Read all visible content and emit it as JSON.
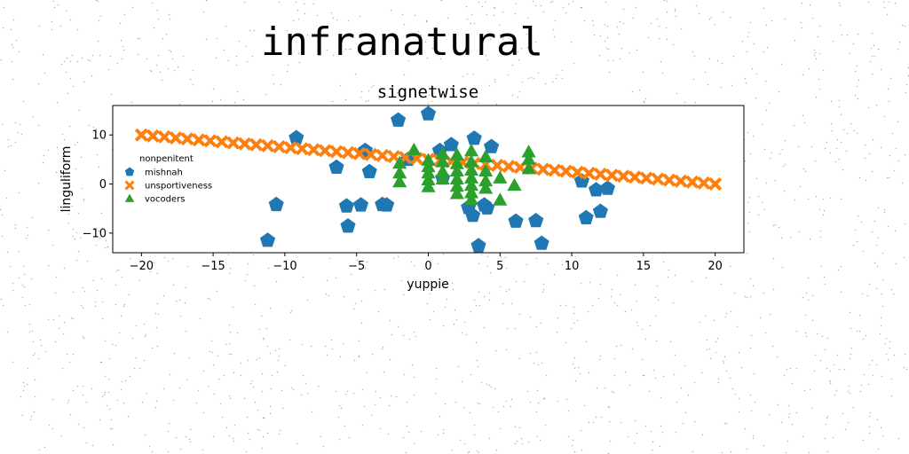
{
  "chart_data": {
    "type": "scatter",
    "suptitle": "infranatural",
    "title": "signetwise",
    "xlabel": "yuppie",
    "ylabel": "linguliform",
    "xlim": [
      -22,
      22
    ],
    "ylim": [
      -14,
      16
    ],
    "xticks": [
      -20,
      -15,
      -10,
      -5,
      0,
      5,
      10,
      15,
      20
    ],
    "yticks": [
      -10,
      0,
      10
    ],
    "grid": false,
    "legend": {
      "title": "nonpenitent",
      "placement": "center-left"
    },
    "series": [
      {
        "name": "mishnah",
        "marker": "pentagon",
        "color": "#1f77b4",
        "points": [
          [
            -11.2,
            -11.5
          ],
          [
            -10.6,
            -4.2
          ],
          [
            -9.2,
            9.4
          ],
          [
            -6.4,
            3.4
          ],
          [
            -5.7,
            -4.5
          ],
          [
            -5.6,
            -8.6
          ],
          [
            -4.7,
            -4.3
          ],
          [
            -4.4,
            6.8
          ],
          [
            -4.1,
            2.5
          ],
          [
            -3.2,
            -4.2
          ],
          [
            -2.9,
            -4.3
          ],
          [
            -2.1,
            13.0
          ],
          [
            -1.4,
            5.0
          ],
          [
            0.0,
            14.3
          ],
          [
            0.8,
            6.8
          ],
          [
            1.0,
            1.2
          ],
          [
            1.6,
            8.0
          ],
          [
            2.8,
            -4.8
          ],
          [
            3.1,
            -6.4
          ],
          [
            3.2,
            9.3
          ],
          [
            3.5,
            -12.6
          ],
          [
            3.9,
            -4.3
          ],
          [
            4.1,
            -4.9
          ],
          [
            4.4,
            7.6
          ],
          [
            6.1,
            -7.6
          ],
          [
            7.5,
            -7.5
          ],
          [
            7.9,
            -12.1
          ],
          [
            10.7,
            0.6
          ],
          [
            11.0,
            -6.9
          ],
          [
            11.7,
            -1.2
          ],
          [
            12.0,
            -5.6
          ],
          [
            12.5,
            -0.9
          ]
        ]
      },
      {
        "name": "unsportiveness",
        "marker": "x-filled",
        "color": "#ff7f0e",
        "points": [
          [
            -20.0,
            10.0
          ],
          [
            -19.2,
            9.8
          ],
          [
            -18.4,
            9.6
          ],
          [
            -17.6,
            9.4
          ],
          [
            -16.8,
            9.2
          ],
          [
            -16.0,
            9.0
          ],
          [
            -15.2,
            8.8
          ],
          [
            -14.4,
            8.6
          ],
          [
            -13.6,
            8.4
          ],
          [
            -12.8,
            8.2
          ],
          [
            -12.0,
            8.0
          ],
          [
            -11.2,
            7.8
          ],
          [
            -10.4,
            7.6
          ],
          [
            -9.6,
            7.4
          ],
          [
            -8.8,
            7.2
          ],
          [
            -8.0,
            7.0
          ],
          [
            -7.2,
            6.8
          ],
          [
            -6.4,
            6.6
          ],
          [
            -5.6,
            6.4
          ],
          [
            -4.8,
            6.2
          ],
          [
            -4.0,
            6.0
          ],
          [
            -3.2,
            5.8
          ],
          [
            -2.4,
            5.6
          ],
          [
            -1.6,
            5.4
          ],
          [
            -0.8,
            5.2
          ],
          [
            0.0,
            5.0
          ],
          [
            0.8,
            4.8
          ],
          [
            1.6,
            4.6
          ],
          [
            2.4,
            4.4
          ],
          [
            3.2,
            4.2
          ],
          [
            4.0,
            4.0
          ],
          [
            4.8,
            3.8
          ],
          [
            5.6,
            3.6
          ],
          [
            6.4,
            3.4
          ],
          [
            7.2,
            3.2
          ],
          [
            8.0,
            3.0
          ],
          [
            8.8,
            2.8
          ],
          [
            9.6,
            2.6
          ],
          [
            10.4,
            2.4
          ],
          [
            11.2,
            2.2
          ],
          [
            12.0,
            2.0
          ],
          [
            12.8,
            1.8
          ],
          [
            13.6,
            1.6
          ],
          [
            14.4,
            1.4
          ],
          [
            15.2,
            1.2
          ],
          [
            16.0,
            1.0
          ],
          [
            16.8,
            0.8
          ],
          [
            17.6,
            0.6
          ],
          [
            18.4,
            0.4
          ],
          [
            19.2,
            0.2
          ],
          [
            20.0,
            0.0
          ]
        ]
      },
      {
        "name": "vocoders",
        "marker": "triangle",
        "color": "#2ca02c",
        "points": [
          [
            -2.0,
            4.2
          ],
          [
            -2.0,
            2.2
          ],
          [
            -2.0,
            0.4
          ],
          [
            -1.0,
            6.9
          ],
          [
            0.0,
            4.8
          ],
          [
            0.0,
            3.5
          ],
          [
            0.0,
            2.2
          ],
          [
            0.0,
            0.8
          ],
          [
            0.0,
            -0.6
          ],
          [
            1.0,
            6.1
          ],
          [
            1.0,
            4.5
          ],
          [
            1.0,
            2.5
          ],
          [
            1.0,
            1.0
          ],
          [
            2.0,
            5.9
          ],
          [
            2.0,
            4.1
          ],
          [
            2.0,
            2.6
          ],
          [
            2.0,
            1.0
          ],
          [
            2.0,
            -0.5
          ],
          [
            2.0,
            -2.0
          ],
          [
            3.0,
            6.7
          ],
          [
            3.0,
            4.5
          ],
          [
            3.0,
            2.8
          ],
          [
            3.0,
            1.2
          ],
          [
            3.0,
            -0.3
          ],
          [
            3.0,
            -1.8
          ],
          [
            3.0,
            -3.2
          ],
          [
            4.0,
            5.5
          ],
          [
            4.0,
            2.6
          ],
          [
            4.0,
            0.6
          ],
          [
            4.0,
            -0.9
          ],
          [
            5.0,
            1.2
          ],
          [
            5.0,
            -3.3
          ],
          [
            6.0,
            -0.3
          ],
          [
            7.0,
            6.5
          ],
          [
            7.0,
            5.0
          ],
          [
            7.0,
            3.1
          ]
        ]
      }
    ]
  }
}
